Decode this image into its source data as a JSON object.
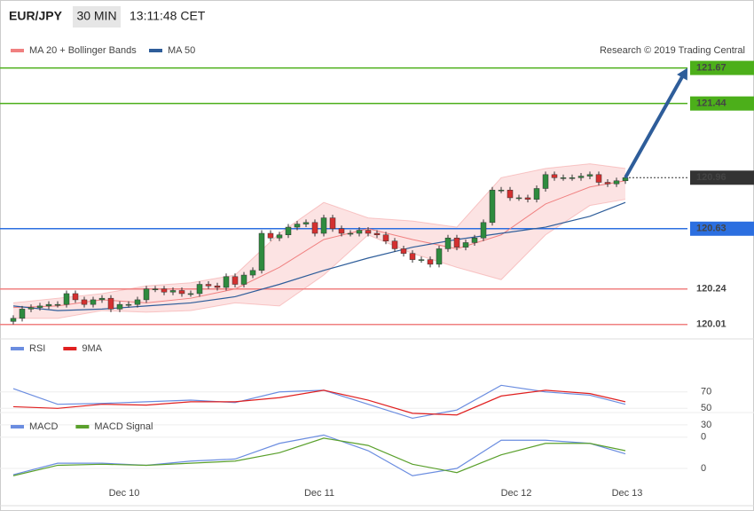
{
  "header": {
    "symbol": "EUR/JPY",
    "interval": "30 MIN",
    "time": "13:11:48 CET",
    "legend": [
      "MA 20 + Bollinger Bands",
      "MA 50"
    ],
    "credit": "Research © 2019 Trading Central"
  },
  "chart_data": [
    {
      "type": "candlestick",
      "xlim": [
        -1.5,
        76
      ],
      "ylim": [
        119.94,
        121.88
      ],
      "xticks": [
        {
          "value": 12.5,
          "label": "Dec 10"
        },
        {
          "value": 34.5,
          "label": "Dec 11"
        },
        {
          "value": 56.7,
          "label": "Dec 12"
        },
        {
          "value": 69.2,
          "label": "Dec 13"
        }
      ],
      "up_color": "#2e8b3e",
      "down_color": "#d43030",
      "open": [
        120.03,
        120.05,
        120.11,
        120.12,
        120.13,
        120.14,
        120.14,
        120.21,
        120.17,
        120.14,
        120.17,
        120.18,
        120.11,
        120.14,
        120.14,
        120.17,
        120.24,
        120.24,
        120.22,
        120.23,
        120.21,
        120.21,
        120.27,
        120.26,
        120.25,
        120.32,
        120.27,
        120.33,
        120.36,
        120.6,
        120.57,
        120.59,
        120.64,
        120.66,
        120.67,
        120.6,
        120.7,
        120.63,
        120.6,
        120.6,
        120.62,
        120.6,
        120.59,
        120.55,
        120.5,
        120.47,
        120.43,
        120.43,
        120.4,
        120.5,
        120.57,
        120.51,
        120.54,
        120.57,
        120.67,
        120.88,
        120.88,
        120.83,
        120.83,
        120.82,
        120.89,
        120.98,
        120.96,
        120.96,
        120.96,
        120.97,
        120.98,
        120.93,
        120.92,
        120.94
      ],
      "high": [
        120.07,
        120.13,
        120.14,
        120.15,
        120.16,
        120.16,
        120.23,
        120.23,
        120.19,
        120.19,
        120.2,
        120.2,
        120.16,
        120.16,
        120.19,
        120.26,
        120.26,
        120.26,
        120.25,
        120.25,
        120.23,
        120.29,
        120.29,
        120.28,
        120.34,
        120.34,
        120.35,
        120.38,
        120.62,
        120.62,
        120.61,
        120.66,
        120.68,
        120.69,
        120.69,
        120.72,
        120.72,
        120.65,
        120.62,
        120.64,
        120.64,
        120.62,
        120.61,
        120.57,
        120.52,
        120.49,
        120.45,
        120.45,
        120.52,
        120.59,
        120.59,
        120.56,
        120.59,
        120.69,
        120.9,
        120.9,
        120.9,
        120.85,
        120.85,
        120.91,
        121.0,
        121.0,
        120.98,
        120.98,
        120.99,
        121.0,
        121.0,
        120.95,
        120.96,
        120.98
      ],
      "low": [
        120.01,
        120.03,
        120.09,
        120.1,
        120.11,
        120.12,
        120.12,
        120.15,
        120.12,
        120.12,
        120.15,
        120.09,
        120.09,
        120.12,
        120.12,
        120.15,
        120.22,
        120.2,
        120.2,
        120.19,
        120.19,
        120.19,
        120.24,
        120.23,
        120.23,
        120.25,
        120.25,
        120.31,
        120.34,
        120.55,
        120.55,
        120.57,
        120.62,
        120.64,
        120.58,
        120.58,
        120.61,
        120.58,
        120.58,
        120.58,
        120.58,
        120.57,
        120.53,
        120.48,
        120.45,
        120.41,
        120.41,
        120.38,
        120.38,
        120.48,
        120.49,
        120.49,
        120.52,
        120.55,
        120.65,
        120.86,
        120.81,
        120.81,
        120.8,
        120.8,
        120.87,
        120.94,
        120.94,
        120.94,
        120.94,
        120.95,
        120.91,
        120.9,
        120.9,
        120.92
      ],
      "close": [
        120.05,
        120.11,
        120.12,
        120.13,
        120.14,
        120.14,
        120.21,
        120.17,
        120.14,
        120.17,
        120.18,
        120.11,
        120.14,
        120.14,
        120.17,
        120.24,
        120.24,
        120.22,
        120.23,
        120.21,
        120.21,
        120.27,
        120.26,
        120.25,
        120.32,
        120.27,
        120.33,
        120.36,
        120.6,
        120.57,
        120.59,
        120.64,
        120.66,
        120.67,
        120.6,
        120.7,
        120.63,
        120.6,
        120.6,
        120.62,
        120.6,
        120.59,
        120.55,
        120.5,
        120.47,
        120.43,
        120.43,
        120.4,
        120.5,
        120.57,
        120.51,
        120.54,
        120.57,
        120.67,
        120.88,
        120.88,
        120.83,
        120.83,
        120.82,
        120.89,
        120.98,
        120.96,
        120.96,
        120.96,
        120.97,
        120.98,
        120.93,
        120.92,
        120.94,
        120.96
      ],
      "series": [
        {
          "name": "MA 20 + Bollinger Bands",
          "color": "#f08080",
          "x": [
            0,
            5,
            10,
            15,
            20,
            25,
            30,
            35,
            40,
            45,
            50,
            55,
            60,
            65,
            69
          ],
          "values": [
            120.12,
            120.13,
            120.17,
            120.15,
            120.18,
            120.24,
            120.38,
            120.56,
            120.63,
            120.56,
            120.5,
            120.59,
            120.79,
            120.9,
            120.94
          ],
          "upper": [
            120.15,
            120.18,
            120.21,
            120.26,
            120.28,
            120.33,
            120.6,
            120.8,
            120.7,
            120.68,
            120.64,
            120.96,
            121.02,
            121.05,
            121.02
          ],
          "lower": [
            120.05,
            120.05,
            120.1,
            120.09,
            120.1,
            120.15,
            120.13,
            120.33,
            120.59,
            120.47,
            120.38,
            120.3,
            120.59,
            120.78,
            120.82
          ]
        },
        {
          "name": "MA 50",
          "color": "#2e5d9a",
          "x": [
            0,
            5,
            10,
            15,
            20,
            25,
            30,
            35,
            40,
            45,
            50,
            55,
            60,
            65,
            69
          ],
          "values": [
            120.13,
            120.1,
            120.11,
            120.13,
            120.15,
            120.19,
            120.27,
            120.36,
            120.44,
            120.51,
            120.56,
            120.6,
            120.64,
            120.71,
            120.8
          ]
        }
      ],
      "levels": [
        {
          "value": 121.67,
          "color": "#4caf1a",
          "style": "solid"
        },
        {
          "value": 121.44,
          "color": "#4caf1a",
          "style": "solid"
        },
        {
          "value": 120.96,
          "color": "#333333",
          "style": "dotted"
        },
        {
          "value": 120.63,
          "color": "#2c6fe0",
          "style": "solid"
        },
        {
          "value": 120.24,
          "color": "#f08080",
          "style": "solid"
        },
        {
          "value": 120.01,
          "color": "#f08080",
          "style": "solid"
        }
      ],
      "forecast": {
        "x": [
          69,
          76
        ],
        "values": [
          120.96,
          121.67
        ],
        "color": "#2e5d9a"
      }
    },
    {
      "type": "line",
      "xlim": [
        -1.5,
        76
      ],
      "ylim": [
        18,
        115
      ],
      "yticks": [
        70,
        50,
        30
      ],
      "series": [
        {
          "name": "RSI",
          "color": "#6b8de0",
          "x": [
            0,
            5,
            10,
            15,
            20,
            25,
            30,
            35,
            40,
            45,
            50,
            55,
            60,
            65,
            69
          ],
          "values": [
            74,
            55,
            56,
            58,
            60,
            57,
            70,
            72,
            55,
            38,
            48,
            78,
            70,
            66,
            55
          ]
        },
        {
          "name": "9MA",
          "color": "#e02020",
          "x": [
            0,
            5,
            10,
            15,
            20,
            25,
            30,
            35,
            40,
            45,
            50,
            55,
            60,
            65,
            69
          ],
          "values": [
            52,
            50,
            55,
            54,
            58,
            58,
            63,
            72,
            60,
            44,
            42,
            65,
            72,
            68,
            58
          ]
        }
      ]
    },
    {
      "type": "line",
      "xlim": [
        -1.5,
        76
      ],
      "ylim": [
        -0.34,
        0.34
      ],
      "yticks": [
        {
          "value": 0.3,
          "label": "0"
        },
        0
      ],
      "series": [
        {
          "name": "MACD",
          "color": "#6b8de0",
          "x": [
            0,
            5,
            10,
            15,
            20,
            25,
            30,
            35,
            40,
            45,
            50,
            55,
            60,
            65,
            69
          ],
          "values": [
            -0.06,
            0.05,
            0.05,
            0.03,
            0.07,
            0.09,
            0.24,
            0.32,
            0.17,
            -0.07,
            0.0,
            0.27,
            0.27,
            0.24,
            0.14
          ]
        },
        {
          "name": "MACD Signal",
          "color": "#5aa02c",
          "x": [
            0,
            5,
            10,
            15,
            20,
            25,
            30,
            35,
            40,
            45,
            50,
            55,
            60,
            65,
            69
          ],
          "values": [
            -0.07,
            0.03,
            0.04,
            0.03,
            0.05,
            0.07,
            0.15,
            0.29,
            0.22,
            0.04,
            -0.04,
            0.13,
            0.24,
            0.24,
            0.17
          ]
        }
      ]
    }
  ]
}
